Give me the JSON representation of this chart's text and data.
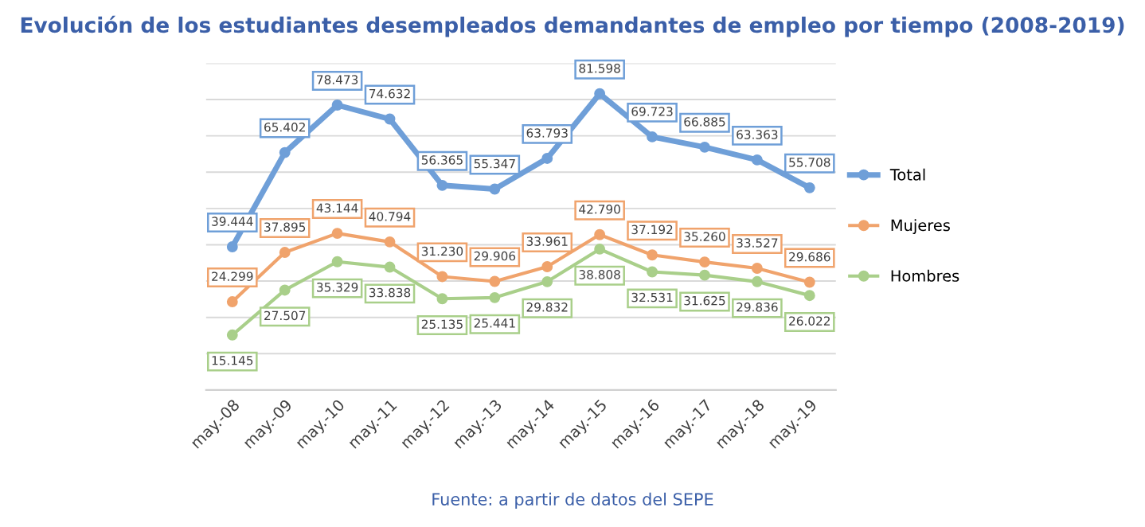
{
  "chart_data": {
    "type": "line",
    "title": "Evolución de los estudiantes desempleados demandantes de empleo por tiempo (2008-2019)",
    "categories": [
      "may.-08",
      "may.-09",
      "may.-10",
      "may.-11",
      "may.-12",
      "may.-13",
      "may.-14",
      "may.-15",
      "may.-16",
      "may.-17",
      "may.-18",
      "may.-19"
    ],
    "series": [
      {
        "name": "Total",
        "color": "#6f9fd8",
        "values": [
          39444,
          65402,
          78473,
          74632,
          56365,
          55347,
          63793,
          81598,
          69723,
          66885,
          63363,
          55708
        ],
        "value_labels": [
          "39.444",
          "65.402",
          "78.473",
          "74.632",
          "56.365",
          "55.347",
          "63.793",
          "81.598",
          "69.723",
          "66.885",
          "63.363",
          "55.708"
        ]
      },
      {
        "name": "Mujeres",
        "color": "#f0a36c",
        "values": [
          24299,
          37895,
          43144,
          40794,
          31230,
          29906,
          33961,
          42790,
          37192,
          35260,
          33527,
          29686
        ],
        "value_labels": [
          "24.299",
          "37.895",
          "43.144",
          "40.794",
          "31.230",
          "29.906",
          "33.961",
          "42.790",
          "37.192",
          "35.260",
          "33.527",
          "29.686"
        ]
      },
      {
        "name": "Hombres",
        "color": "#a9cf8a",
        "values": [
          15145,
          27507,
          35329,
          33838,
          25135,
          25441,
          29832,
          38808,
          32531,
          31625,
          29836,
          26022
        ],
        "value_labels": [
          "15.145",
          "27.507",
          "35.329",
          "33.838",
          "25.135",
          "25.441",
          "29.832",
          "38.808",
          "32.531",
          "31.625",
          "29.836",
          "26.022"
        ]
      }
    ],
    "ylim": [
      0,
      90000
    ],
    "yticks": [
      {
        "value": 0,
        "label": null
      },
      {
        "value": 10000,
        "label": null
      },
      {
        "value": 20000,
        "label": null
      },
      {
        "value": 30000,
        "label": null
      },
      {
        "value": 40000,
        "label": null
      },
      {
        "value": 50000,
        "label": null
      },
      {
        "value": 60000,
        "label": null
      },
      {
        "value": 70000,
        "label": null
      },
      {
        "value": 80000,
        "label": null
      },
      {
        "value": 90000,
        "label": null
      }
    ],
    "tick_labels": "x",
    "grid": "y",
    "legend": "right",
    "marker": "circle",
    "line_style": "solid",
    "annotations": [
      "Fuente: a partir de datos del SEPE"
    ]
  }
}
